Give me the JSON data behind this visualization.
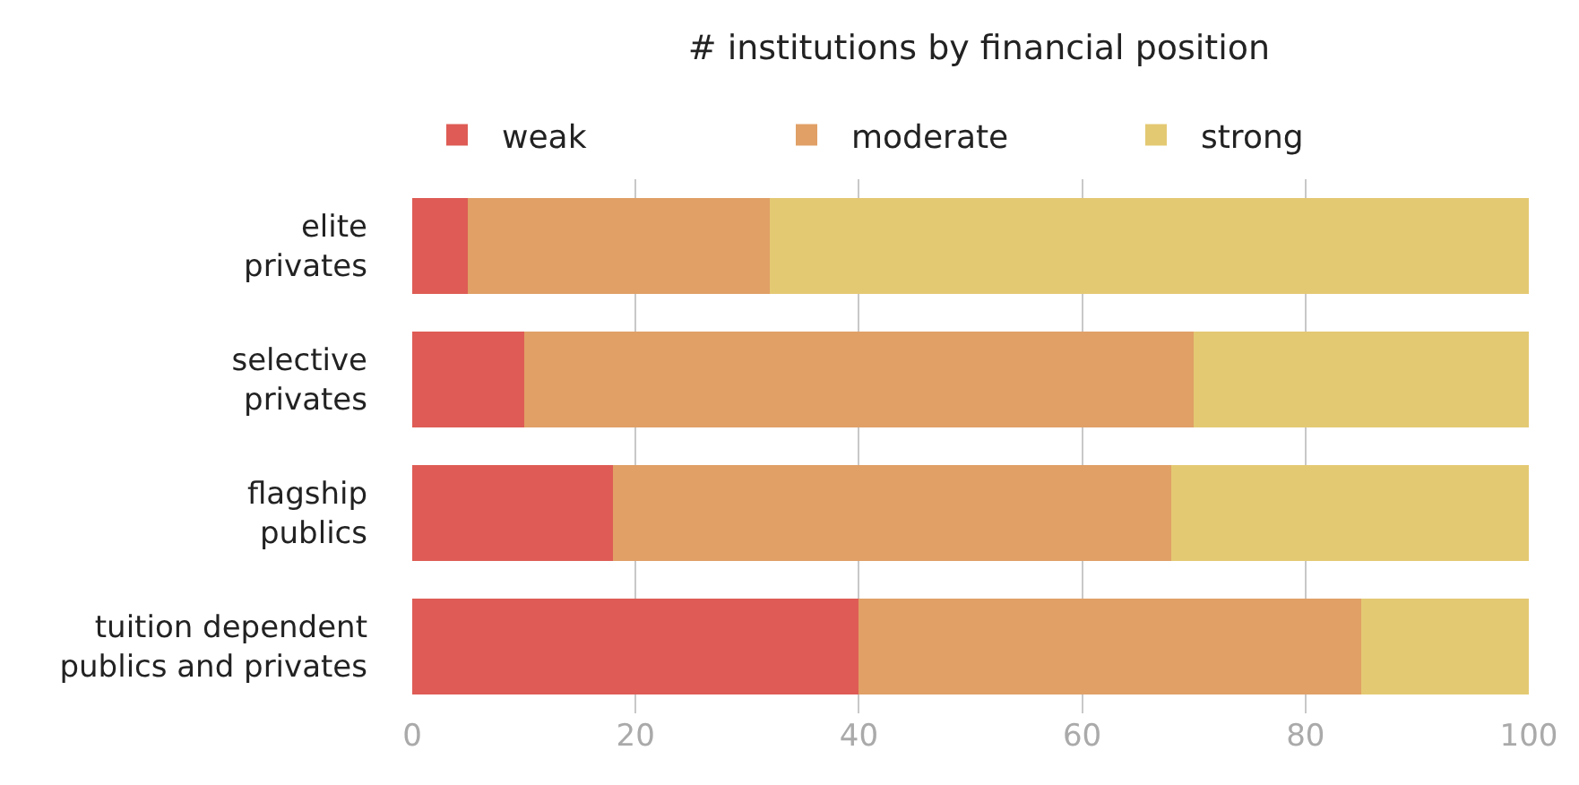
{
  "chart_data": {
    "type": "bar",
    "orientation": "horizontal",
    "stacked": true,
    "title": "# institutions by financial position",
    "categories": [
      "elite\nprivates",
      "selective\nprivates",
      "flagship\npublics",
      "tuition dependent\npublics and privates"
    ],
    "series": [
      {
        "name": "weak",
        "color": "#de5c55",
        "values": [
          5,
          10,
          18,
          40
        ]
      },
      {
        "name": "moderate",
        "color": "#e0a066",
        "values": [
          27,
          60,
          50,
          45
        ]
      },
      {
        "name": "strong",
        "color": "#e4c973",
        "values": [
          68,
          30,
          32,
          15
        ]
      }
    ],
    "xlim": [
      0,
      100
    ],
    "xticks": [
      0,
      20,
      40,
      60,
      80,
      100
    ],
    "grid": "x",
    "legend": "top left"
  }
}
